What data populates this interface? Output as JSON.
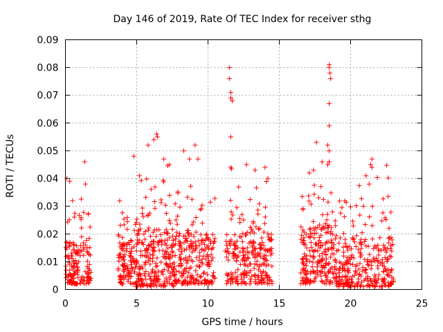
{
  "chart_data": {
    "type": "scatter",
    "title": "Day 146 of 2019, Rate Of TEC Index for receiver sthg",
    "xlabel": "GPS time / hours",
    "ylabel": "ROTI / TECUs",
    "xlim": [
      0,
      25
    ],
    "ylim": [
      0,
      0.09
    ],
    "xticks": [
      0,
      5,
      10,
      15,
      20,
      25
    ],
    "xtick_labels": [
      "0",
      "5",
      "10",
      "15",
      "20",
      "25"
    ],
    "yticks": [
      0,
      0.01,
      0.02,
      0.03,
      0.04,
      0.05,
      0.06,
      0.07,
      0.08,
      0.09
    ],
    "ytick_labels": [
      "0",
      "0.01",
      "0.02",
      "0.03",
      "0.04",
      "0.05",
      "0.06",
      "0.07",
      "0.08",
      "0.09"
    ],
    "grid": true,
    "marker": "+",
    "color": "#ff0000",
    "clusters": [
      {
        "x_start": 0.0,
        "x_end": 1.8,
        "y_low": 0.002,
        "y_typical": 0.011,
        "y_high": 0.04,
        "density": 160
      },
      {
        "x_start": 3.7,
        "x_end": 4.9,
        "y_low": 0.002,
        "y_typical": 0.01,
        "y_high": 0.037,
        "density": 110
      },
      {
        "x_start": 4.9,
        "x_end": 7.6,
        "y_low": 0.001,
        "y_typical": 0.013,
        "y_high": 0.056,
        "density": 260
      },
      {
        "x_start": 7.6,
        "x_end": 10.5,
        "y_low": 0.002,
        "y_typical": 0.012,
        "y_high": 0.052,
        "density": 240
      },
      {
        "x_start": 11.2,
        "x_end": 14.5,
        "y_low": 0.002,
        "y_typical": 0.012,
        "y_high": 0.045,
        "density": 260
      },
      {
        "x_start": 16.5,
        "x_end": 19.0,
        "y_low": 0.002,
        "y_typical": 0.014,
        "y_high": 0.053,
        "density": 230
      },
      {
        "x_start": 19.0,
        "x_end": 23.0,
        "y_low": 0.001,
        "y_typical": 0.011,
        "y_high": 0.047,
        "density": 300
      }
    ],
    "notable_points": [
      {
        "x": 0.1,
        "y": 0.04
      },
      {
        "x": 0.3,
        "y": 0.039
      },
      {
        "x": 0.5,
        "y": 0.032
      },
      {
        "x": 1.35,
        "y": 0.046
      },
      {
        "x": 1.4,
        "y": 0.038
      },
      {
        "x": 4.8,
        "y": 0.048
      },
      {
        "x": 5.2,
        "y": 0.041
      },
      {
        "x": 5.8,
        "y": 0.052
      },
      {
        "x": 6.2,
        "y": 0.054
      },
      {
        "x": 6.4,
        "y": 0.056
      },
      {
        "x": 6.45,
        "y": 0.055
      },
      {
        "x": 6.9,
        "y": 0.047
      },
      {
        "x": 7.3,
        "y": 0.045
      },
      {
        "x": 8.3,
        "y": 0.05
      },
      {
        "x": 8.7,
        "y": 0.047
      },
      {
        "x": 9.1,
        "y": 0.052
      },
      {
        "x": 9.3,
        "y": 0.047
      },
      {
        "x": 11.5,
        "y": 0.08
      },
      {
        "x": 11.5,
        "y": 0.076
      },
      {
        "x": 11.6,
        "y": 0.071
      },
      {
        "x": 11.6,
        "y": 0.069
      },
      {
        "x": 11.7,
        "y": 0.068
      },
      {
        "x": 11.6,
        "y": 0.055
      },
      {
        "x": 11.6,
        "y": 0.044
      },
      {
        "x": 12.7,
        "y": 0.045
      },
      {
        "x": 13.3,
        "y": 0.043
      },
      {
        "x": 14.0,
        "y": 0.044
      },
      {
        "x": 14.2,
        "y": 0.04
      },
      {
        "x": 17.1,
        "y": 0.042
      },
      {
        "x": 17.4,
        "y": 0.043
      },
      {
        "x": 17.6,
        "y": 0.053
      },
      {
        "x": 18.0,
        "y": 0.046
      },
      {
        "x": 18.5,
        "y": 0.081
      },
      {
        "x": 18.5,
        "y": 0.08
      },
      {
        "x": 18.55,
        "y": 0.078
      },
      {
        "x": 18.6,
        "y": 0.076
      },
      {
        "x": 18.5,
        "y": 0.067
      },
      {
        "x": 18.5,
        "y": 0.059
      },
      {
        "x": 18.4,
        "y": 0.052
      },
      {
        "x": 18.5,
        "y": 0.05
      },
      {
        "x": 18.5,
        "y": 0.046
      },
      {
        "x": 18.4,
        "y": 0.045
      },
      {
        "x": 21.3,
        "y": 0.038
      },
      {
        "x": 21.4,
        "y": 0.045
      },
      {
        "x": 21.5,
        "y": 0.047
      },
      {
        "x": 21.5,
        "y": 0.044
      }
    ]
  }
}
